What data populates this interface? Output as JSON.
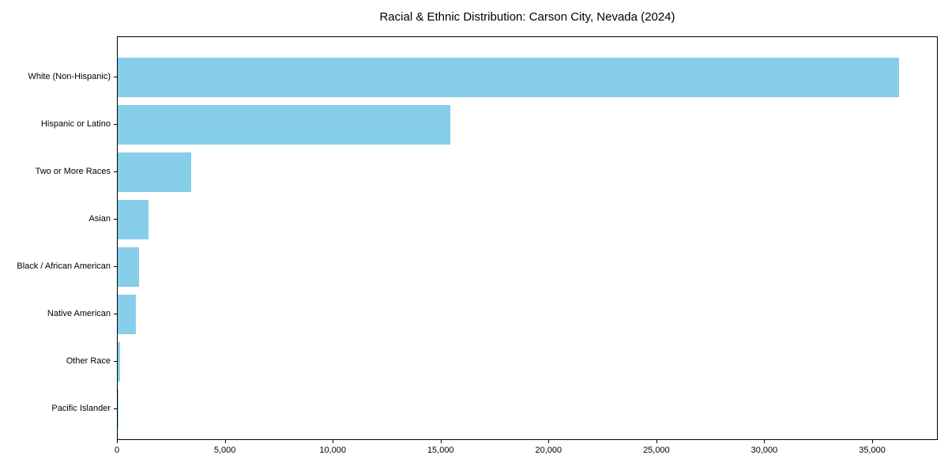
{
  "chart_data": {
    "type": "bar",
    "orientation": "horizontal",
    "title": "Racial & Ethnic Distribution: Carson City, Nevada (2024)",
    "categories": [
      "White (Non-Hispanic)",
      "Hispanic or Latino",
      "Two or More Races",
      "Asian",
      "Black / African American",
      "Native American",
      "Other Race",
      "Pacific Islander"
    ],
    "values": [
      36200,
      15400,
      3400,
      1430,
      1000,
      850,
      120,
      40
    ],
    "xlabel": "",
    "ylabel": "",
    "xlim": [
      0,
      38000
    ],
    "xtick_values": [
      0,
      5000,
      10000,
      15000,
      20000,
      25000,
      30000,
      35000
    ],
    "xtick_labels": [
      "0",
      "5,000",
      "10,000",
      "15,000",
      "20,000",
      "25,000",
      "30,000",
      "35,000"
    ],
    "bar_color": "#87CEEB",
    "background_color": "#ffffff",
    "axis_color": "#000000",
    "grid": false,
    "legend_position": "none"
  }
}
